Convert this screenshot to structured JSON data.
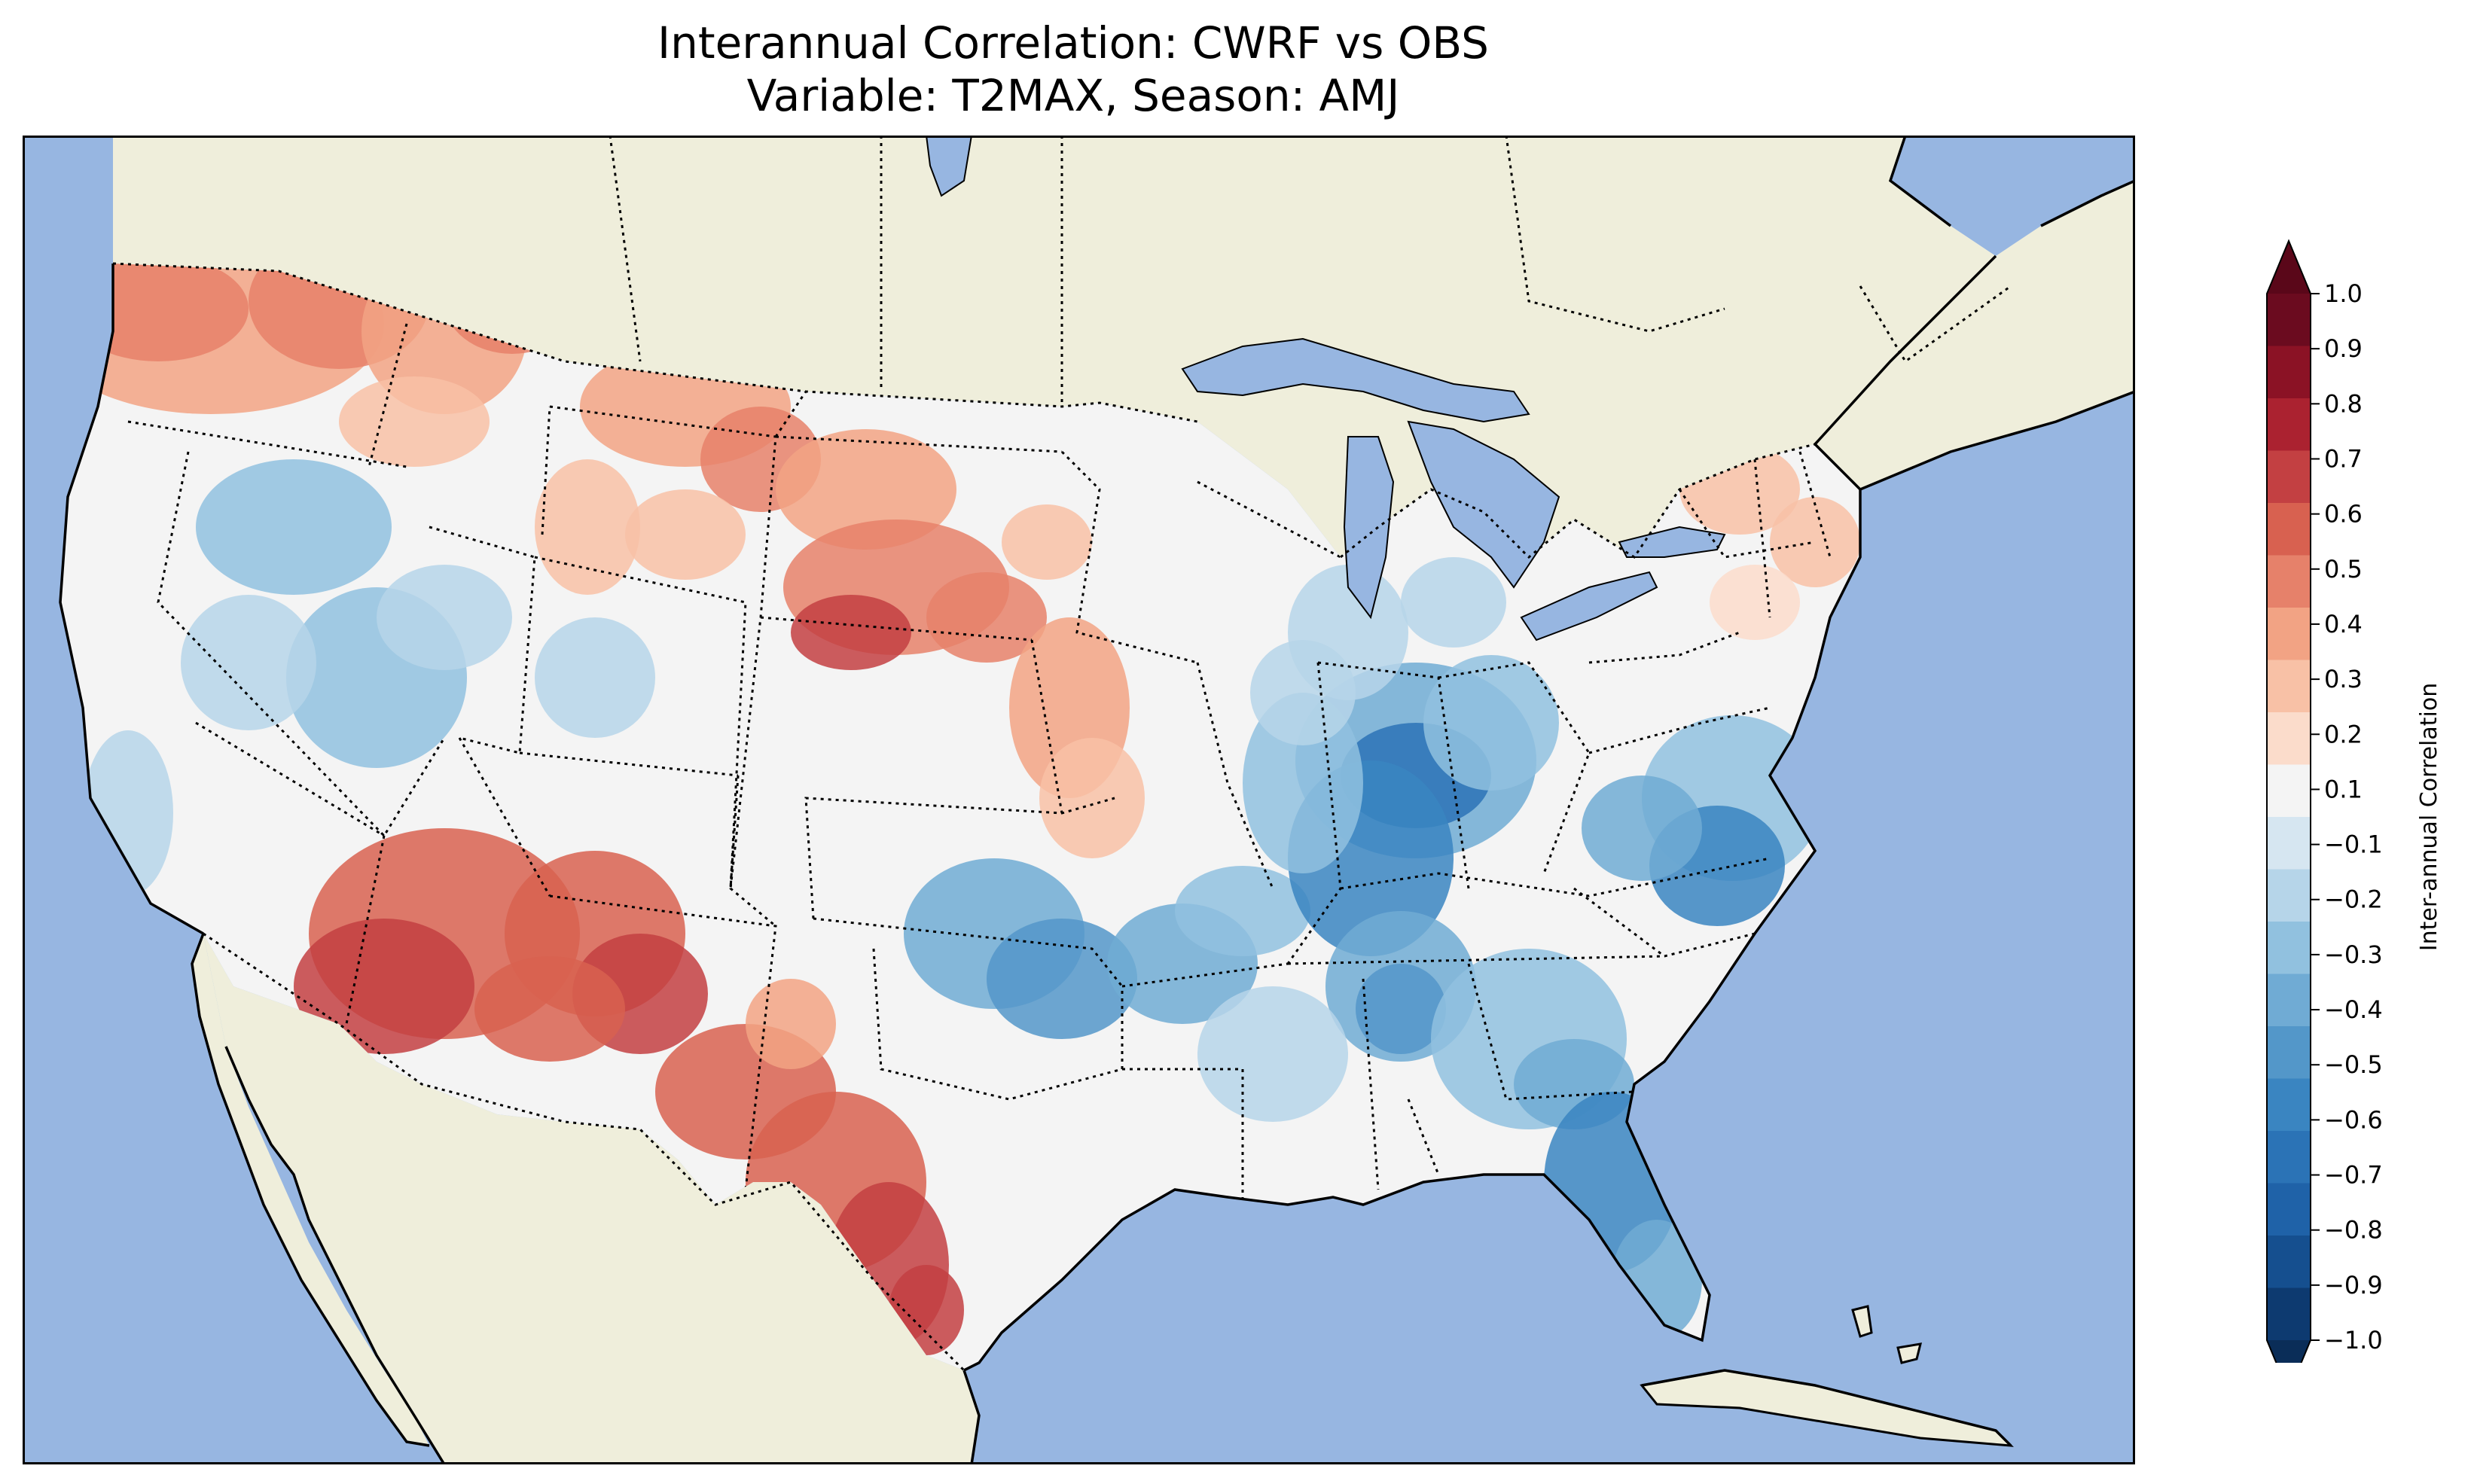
{
  "title": {
    "line1": "Interannual Correlation: CWRF vs OBS",
    "line2": "Variable: T2MAX, Season: AMJ"
  },
  "colorbar": {
    "label": "Inter-annual Correlation",
    "levels": [
      -1.0,
      -0.9,
      -0.8,
      -0.7,
      -0.6,
      -0.5,
      -0.4,
      -0.3,
      -0.2,
      -0.1,
      0.1,
      0.2,
      0.3,
      0.4,
      0.5,
      0.6,
      0.7,
      0.8,
      0.9,
      1.0
    ],
    "tick_labels": [
      "−1.0",
      "−0.9",
      "−0.8",
      "−0.7",
      "−0.6",
      "−0.5",
      "−0.4",
      "−0.3",
      "−0.2",
      "−0.1",
      "0.1",
      "0.2",
      "0.3",
      "0.4",
      "0.5",
      "0.6",
      "0.7",
      "0.8",
      "0.9",
      "1.0"
    ],
    "colors": [
      "#0d3a70",
      "#154f8f",
      "#1f62a8",
      "#2b73b6",
      "#3a85c1",
      "#5397c9",
      "#70abd4",
      "#91c1df",
      "#b6d5e9",
      "#d6e6f1",
      "#f4f4f4",
      "#fbdccb",
      "#f8c1a6",
      "#f2a384",
      "#e6816a",
      "#d86150",
      "#c34042",
      "#ab2230",
      "#8b1225",
      "#6b0b1f"
    ],
    "extend_low_color": "#0a2d58",
    "extend_high_color": "#5a0719"
  },
  "map": {
    "ocean_color": "#97b6e1",
    "land_color": "#efeedb",
    "lake_color": "#97b6e1"
  }
}
